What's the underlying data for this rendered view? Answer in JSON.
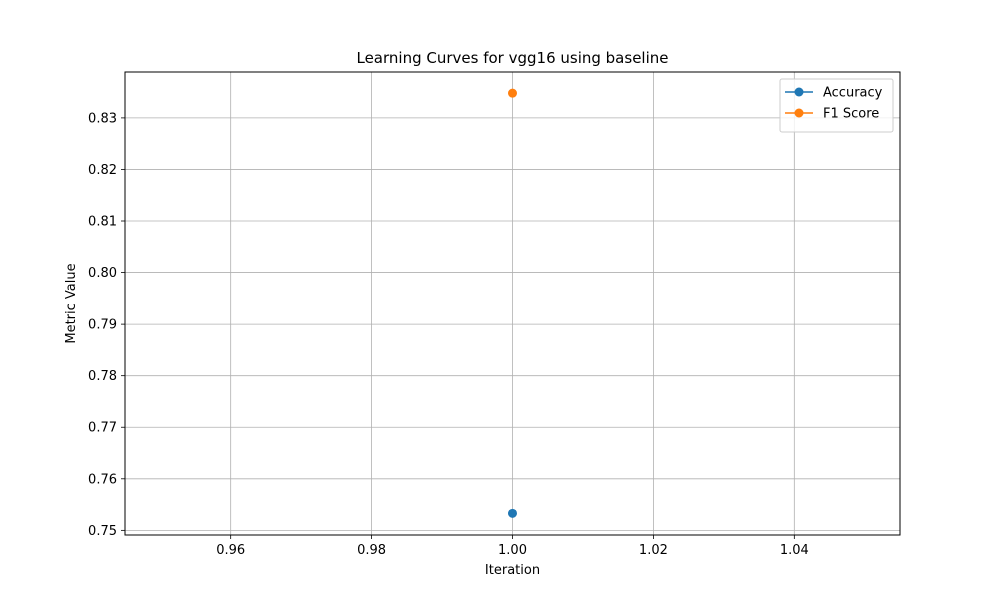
{
  "chart_data": {
    "type": "line",
    "title": "Learning Curves for vgg16 using baseline",
    "xlabel": "Iteration",
    "ylabel": "Metric Value",
    "xlim": [
      0.945,
      1.055
    ],
    "ylim": [
      0.7491,
      0.8389
    ],
    "xticks": [
      0.96,
      0.98,
      1.0,
      1.02,
      1.04
    ],
    "xtick_labels": [
      "0.96",
      "0.98",
      "1.00",
      "1.02",
      "1.04"
    ],
    "yticks": [
      0.75,
      0.76,
      0.77,
      0.78,
      0.79,
      0.8,
      0.81,
      0.82,
      0.83
    ],
    "ytick_labels": [
      "0.75",
      "0.76",
      "0.77",
      "0.78",
      "0.79",
      "0.80",
      "0.81",
      "0.82",
      "0.83"
    ],
    "grid": true,
    "legend_position": "top-right",
    "series": [
      {
        "name": "Accuracy",
        "color": "#1f77b4",
        "x": [
          1.0
        ],
        "y": [
          0.7533
        ]
      },
      {
        "name": "F1 Score",
        "color": "#ff7f0e",
        "x": [
          1.0
        ],
        "y": [
          0.8348
        ]
      }
    ]
  }
}
